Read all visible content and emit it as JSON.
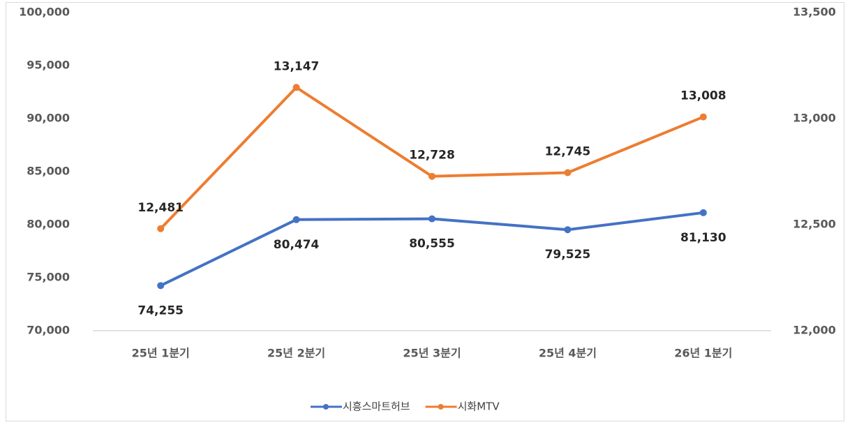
{
  "chart_data": {
    "type": "line",
    "categories": [
      "25년 1분기",
      "25년 2분기",
      "25년 3분기",
      "25년 4분기",
      "26년 1분기"
    ],
    "series": [
      {
        "name": "시흥스마트허브",
        "color": "#4472c4",
        "values": [
          74255,
          80474,
          80555,
          79525,
          81130
        ],
        "value_labels": [
          "74,255",
          "80,474",
          "80,555",
          "79,525",
          "81,130"
        ]
      },
      {
        "name": "시화MTV",
        "color": "#ed7d31",
        "axis": "y2",
        "values": [
          12481,
          13147,
          12728,
          12745,
          13008
        ],
        "value_labels": [
          "12,481",
          "13,147",
          "12,728",
          "12,745",
          "13,008"
        ]
      }
    ],
    "ylim": [
      70000,
      100000
    ],
    "yticks": [
      {
        "value": 70000,
        "label": "70,000"
      },
      {
        "value": 75000,
        "label": "75,000"
      },
      {
        "value": 80000,
        "label": "80,000"
      },
      {
        "value": 85000,
        "label": "85,000"
      },
      {
        "value": 90000,
        "label": "90,000"
      },
      {
        "value": 95000,
        "label": "95,000"
      },
      {
        "value": 100000,
        "label": "100,000"
      }
    ],
    "y2lim": [
      12000,
      13500
    ],
    "y2ticks": [
      {
        "value": 12000,
        "label": "12,000"
      },
      {
        "value": 12500,
        "label": "12,500"
      },
      {
        "value": 13000,
        "label": "13,000"
      },
      {
        "value": 13500,
        "label": "13,500"
      }
    ],
    "legend": "bottom"
  }
}
